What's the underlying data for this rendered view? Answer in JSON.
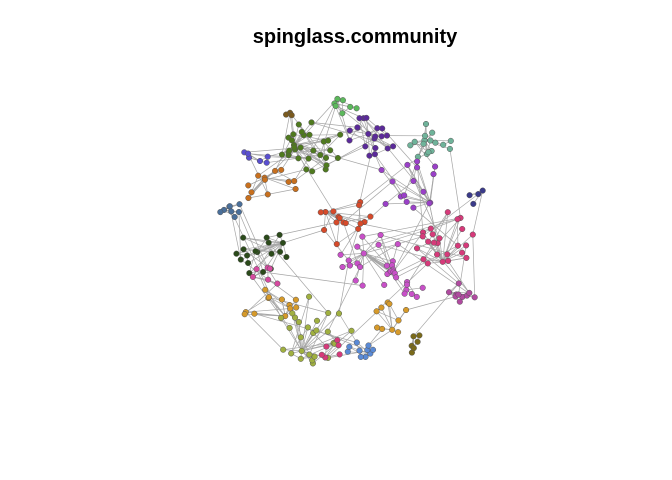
{
  "title": "spinglass.community",
  "communities": [
    {
      "id": "c01",
      "color": "#5cb85c"
    },
    {
      "id": "c02",
      "color": "#4f7a1e"
    },
    {
      "id": "c03",
      "color": "#7a5a1e"
    },
    {
      "id": "c04",
      "color": "#5b2a9a"
    },
    {
      "id": "c05",
      "color": "#6fb39a"
    },
    {
      "id": "c06",
      "color": "#5a4fd0"
    },
    {
      "id": "c07",
      "color": "#c8701e"
    },
    {
      "id": "c08",
      "color": "#4a6f9a"
    },
    {
      "id": "c09",
      "color": "#2b4a1a"
    },
    {
      "id": "c10",
      "color": "#9a40c8"
    },
    {
      "id": "c11",
      "color": "#d63a7a"
    },
    {
      "id": "c12",
      "color": "#d64a2a"
    },
    {
      "id": "c13",
      "color": "#c850c8"
    },
    {
      "id": "c14",
      "color": "#d69a2a"
    },
    {
      "id": "c15",
      "color": "#a0b040"
    },
    {
      "id": "c16",
      "color": "#5a8ad6"
    },
    {
      "id": "c17",
      "color": "#7a6a1a"
    },
    {
      "id": "c18",
      "color": "#3a3a8a"
    },
    {
      "id": "c19",
      "color": "#d64aa0"
    },
    {
      "id": "c20",
      "color": "#b04aa0"
    }
  ]
}
